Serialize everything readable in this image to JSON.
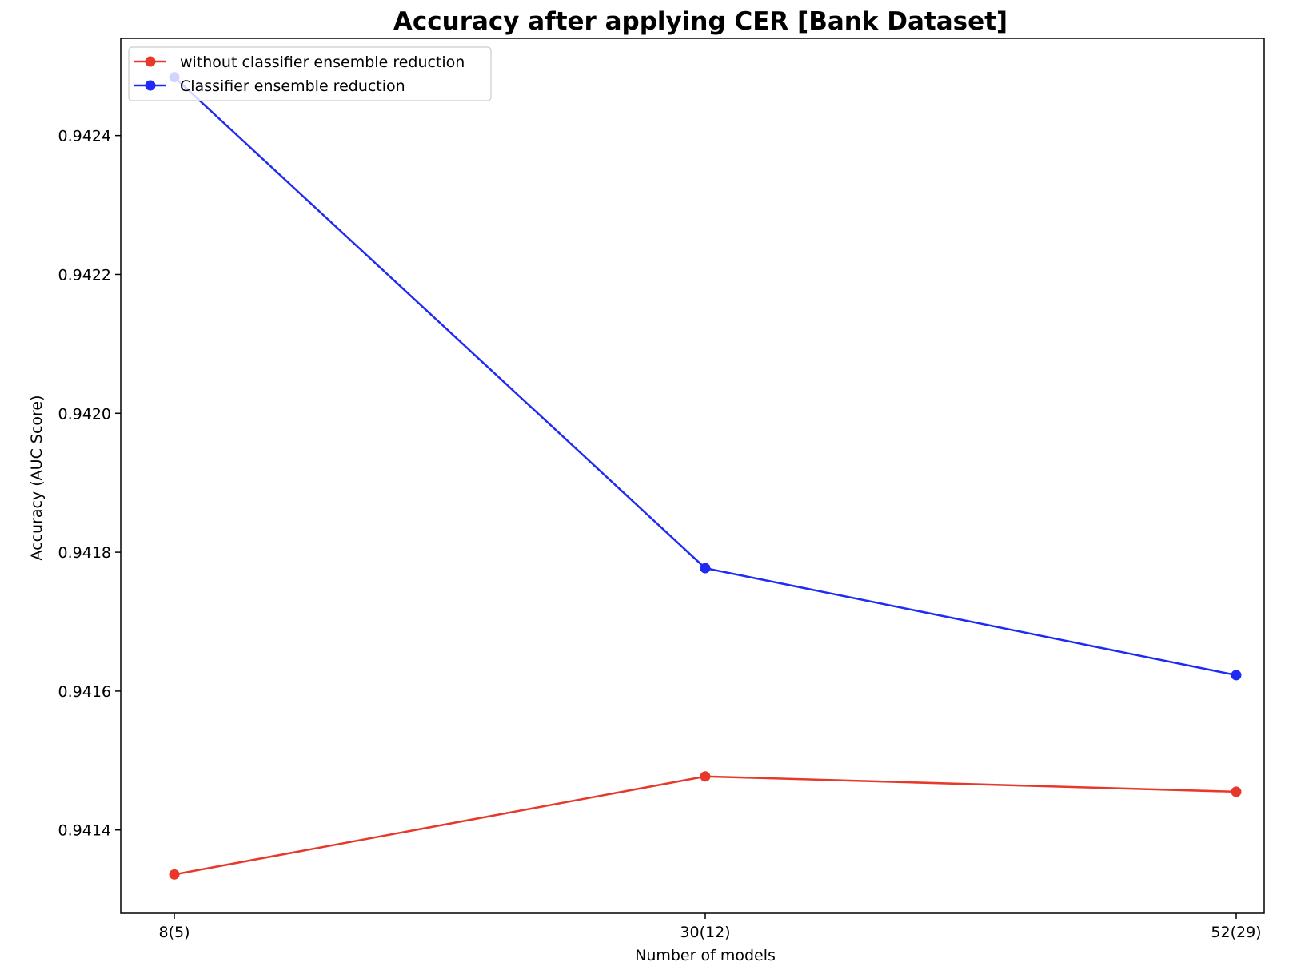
{
  "chart_data": {
    "type": "line",
    "title": "Accuracy after applying CER [Bank Dataset]",
    "xlabel": "Number of models",
    "ylabel": "Accuracy (AUC Score)",
    "categories": [
      "8(5)",
      "30(12)",
      "52(29)"
    ],
    "yticks": [
      {
        "value": 0.9414,
        "label": "0.9414"
      },
      {
        "value": 0.9416,
        "label": "0.9416"
      },
      {
        "value": 0.9418,
        "label": "0.9418"
      },
      {
        "value": 0.942,
        "label": "0.9420"
      },
      {
        "value": 0.9422,
        "label": "0.9422"
      },
      {
        "value": 0.9424,
        "label": "0.9424"
      }
    ],
    "ylim": [
      0.94128,
      0.94254
    ],
    "grid": false,
    "legend_position": "top-left",
    "series": [
      {
        "name": "without classifier ensemble reduction",
        "color": "#e8382a",
        "values": [
          0.941336,
          0.941477,
          0.941455
        ]
      },
      {
        "name": "Classifier ensemble reduction",
        "color": "#1f2af5",
        "values": [
          0.942484,
          0.941777,
          0.941623
        ]
      }
    ]
  }
}
